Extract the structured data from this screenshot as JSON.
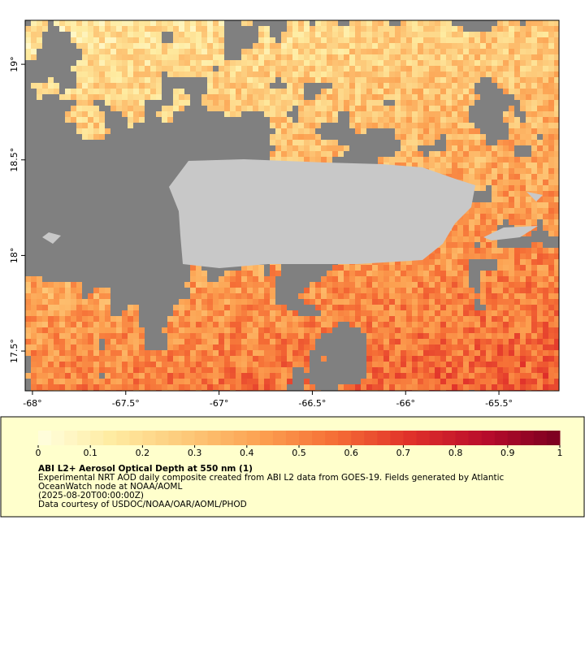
{
  "map": {
    "xlim": [
      -68.039,
      -65.178
    ],
    "ylim": [
      17.292,
      19.23
    ],
    "xticks": [
      {
        "value": -68,
        "label": "-68°"
      },
      {
        "value": -67.5,
        "label": "-67.5°"
      },
      {
        "value": -67,
        "label": "-67°"
      },
      {
        "value": -66.5,
        "label": "-66.5°"
      },
      {
        "value": -66,
        "label": "-66°"
      },
      {
        "value": -65.5,
        "label": "-65.5°"
      }
    ],
    "yticks": [
      {
        "value": 17.5,
        "label": "17.5°"
      },
      {
        "value": 18,
        "label": "18°"
      },
      {
        "value": 18.5,
        "label": "18.5°"
      },
      {
        "value": 19,
        "label": "19°"
      }
    ],
    "missing_color": "#808080",
    "land_color": "#c8c8c8"
  },
  "colorbar": {
    "lim": [
      0,
      1
    ],
    "ticks": [
      0,
      0.1,
      0.2,
      0.3,
      0.4,
      0.5,
      0.6,
      0.7,
      0.8,
      0.9,
      1
    ],
    "colors": [
      "#ffffe0",
      "#feeba0",
      "#fdc878",
      "#fca050",
      "#f56d35",
      "#e0302a",
      "#b80c2c",
      "#7a0020"
    ]
  },
  "caption": {
    "title": "ABI L2+ Aerosol Optical Depth at 550 nm (1)",
    "lines": [
      "Experimental NRT AOD daily composite created from ABI L2 data from GOES-19. Fields generated by Atlantic",
      "OceanWatch node at NOAA/AOML",
      "(2025-08-20T00:00:00Z)",
      "Data courtesy of USDOC/NOAA/OAR/AOML/PHOD"
    ]
  }
}
